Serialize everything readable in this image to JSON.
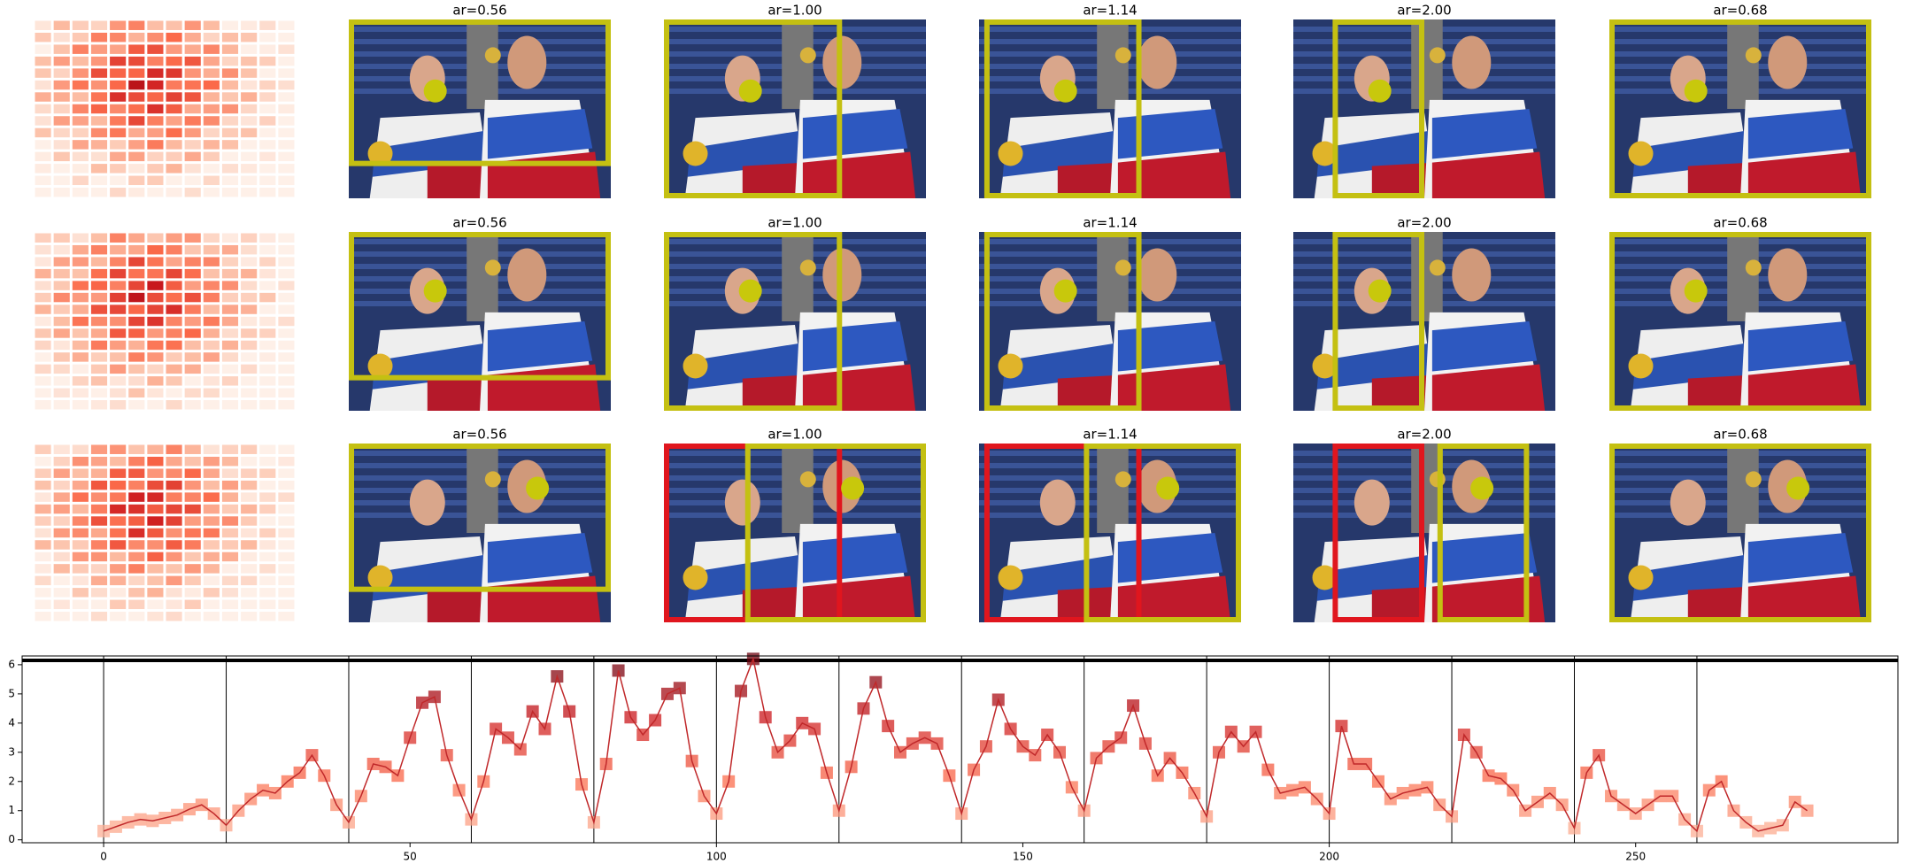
{
  "panel_titles": [
    [
      "ar=0.56",
      "ar=1.00",
      "ar=1.14",
      "ar=2.00",
      "ar=0.68"
    ],
    [
      "ar=0.56",
      "ar=1.00",
      "ar=1.14",
      "ar=2.00",
      "ar=0.68"
    ],
    [
      "ar=0.56",
      "ar=1.00",
      "ar=1.14",
      "ar=2.00",
      "ar=0.68"
    ]
  ],
  "chart_data": {
    "type": "line",
    "colormap": "Reds",
    "color": "#c0282a",
    "x": [
      0,
      2,
      4,
      6,
      8,
      10,
      12,
      14,
      16,
      18,
      20,
      22,
      24,
      26,
      28,
      30,
      32,
      34,
      36,
      38,
      40,
      42,
      44,
      46,
      48,
      50,
      52,
      54,
      56,
      58,
      60,
      62,
      64,
      66,
      68,
      70,
      72,
      74,
      76,
      78,
      80,
      82,
      84,
      86,
      88,
      90,
      92,
      94,
      96,
      98,
      100,
      102,
      104,
      106,
      108,
      110,
      112,
      114,
      116,
      118,
      120,
      122,
      124,
      126,
      128,
      130,
      132,
      134,
      136,
      138,
      140,
      142,
      144,
      146,
      148,
      150,
      152,
      154,
      156,
      158,
      160,
      162,
      164,
      166,
      168,
      170,
      172,
      174,
      176,
      178,
      180,
      182,
      184,
      186,
      188,
      190,
      192,
      194,
      196,
      198,
      200,
      202,
      204,
      206,
      208,
      210,
      212,
      214,
      216,
      218,
      220,
      222,
      224,
      226,
      228,
      230,
      232,
      234,
      236,
      238,
      240,
      242,
      244,
      246,
      248,
      250,
      252,
      254,
      256,
      258,
      260,
      262,
      264,
      266,
      268,
      270,
      272,
      274,
      276,
      278
    ],
    "values": [
      0.3,
      0.45,
      0.6,
      0.7,
      0.65,
      0.75,
      0.85,
      1.05,
      1.2,
      0.9,
      0.5,
      1.0,
      1.4,
      1.7,
      1.6,
      2.0,
      2.3,
      2.9,
      2.2,
      1.2,
      0.6,
      1.5,
      2.6,
      2.5,
      2.2,
      3.5,
      4.7,
      4.9,
      2.9,
      1.7,
      0.7,
      2.0,
      3.8,
      3.5,
      3.1,
      4.4,
      3.8,
      5.6,
      4.4,
      1.9,
      0.6,
      2.6,
      5.8,
      4.2,
      3.6,
      4.1,
      5.0,
      5.2,
      2.7,
      1.5,
      0.9,
      2.0,
      5.1,
      6.2,
      4.2,
      3.0,
      3.4,
      4.0,
      3.8,
      2.3,
      1.0,
      2.5,
      4.5,
      5.4,
      3.9,
      3.0,
      3.3,
      3.5,
      3.3,
      2.2,
      0.9,
      2.4,
      3.2,
      4.8,
      3.8,
      3.2,
      2.9,
      3.6,
      3.0,
      1.8,
      1.0,
      2.8,
      3.2,
      3.5,
      4.6,
      3.3,
      2.2,
      2.8,
      2.3,
      1.6,
      0.8,
      3.0,
      3.7,
      3.2,
      3.7,
      2.4,
      1.6,
      1.7,
      1.8,
      1.4,
      0.9,
      3.9,
      2.6,
      2.6,
      2.0,
      1.4,
      1.6,
      1.7,
      1.8,
      1.2,
      0.8,
      3.6,
      3.0,
      2.2,
      2.1,
      1.7,
      1.0,
      1.3,
      1.6,
      1.2,
      0.4,
      2.3,
      2.9,
      1.5,
      1.2,
      0.9,
      1.2,
      1.5,
      1.5,
      0.7,
      0.3,
      1.7,
      2.0,
      1.0,
      0.6,
      0.3,
      0.4,
      0.5,
      1.3,
      1.0
    ],
    "xlim": [
      -13.3,
      292.8
    ],
    "ylim": [
      -0.1,
      6.3
    ],
    "xticks": [
      0,
      50,
      100,
      150,
      200,
      250
    ],
    "yticks": [
      0,
      1,
      2,
      3,
      4,
      5,
      6
    ],
    "vlines": [
      0,
      20,
      40,
      60,
      80,
      100,
      120,
      140,
      160,
      180,
      200,
      220,
      240,
      260
    ],
    "hline": 6.15
  }
}
